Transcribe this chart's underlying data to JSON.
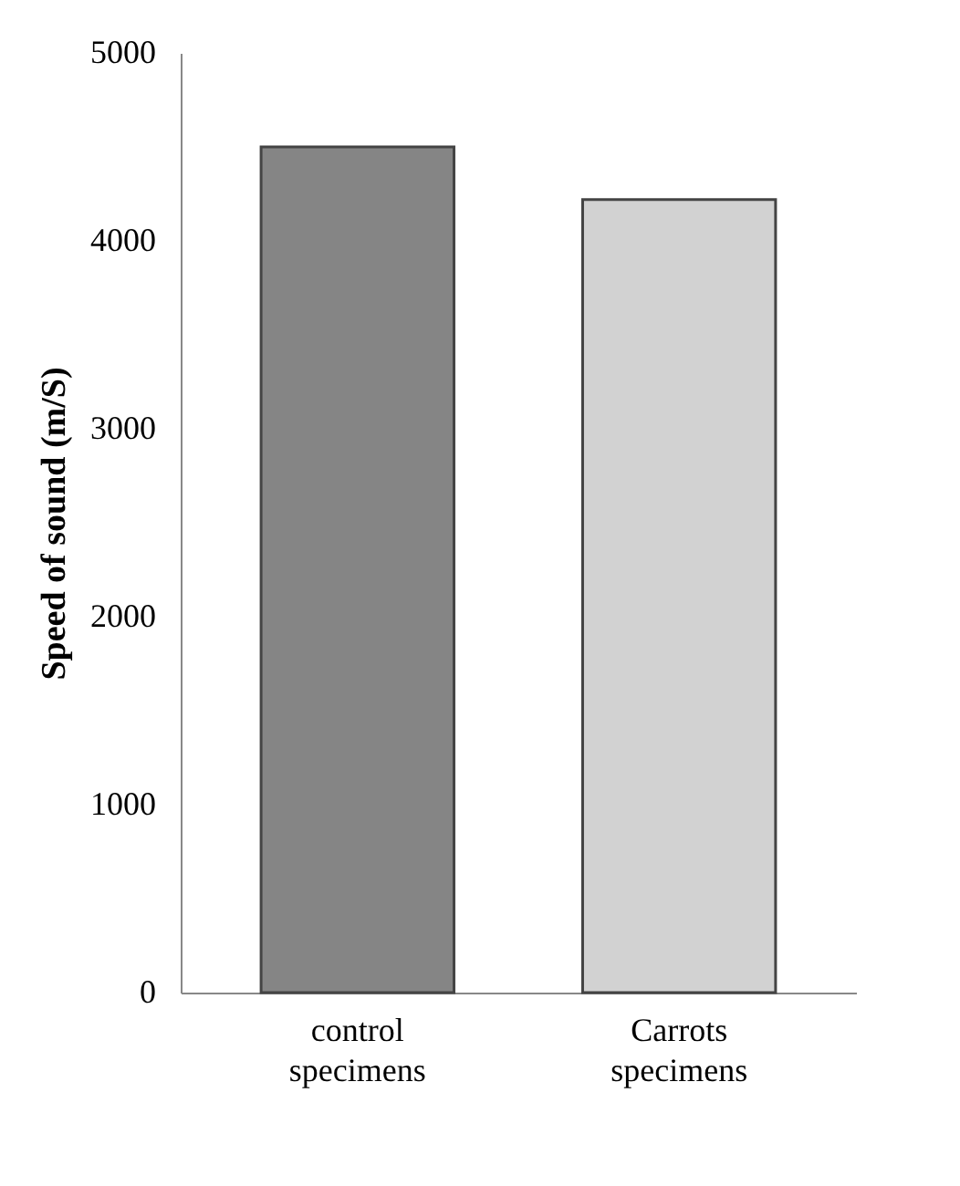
{
  "chart_data": {
    "type": "bar",
    "ylabel": "Speed of sound (m/S)",
    "categories": [
      "control specimens",
      "Carrots specimens"
    ],
    "values": [
      4500,
      4220
    ],
    "colors": [
      "#858585",
      "#d2d2d2"
    ],
    "ylim": [
      0,
      5000
    ],
    "yticks": [
      0,
      1000,
      2000,
      3000,
      4000,
      5000
    ],
    "grid": false
  }
}
